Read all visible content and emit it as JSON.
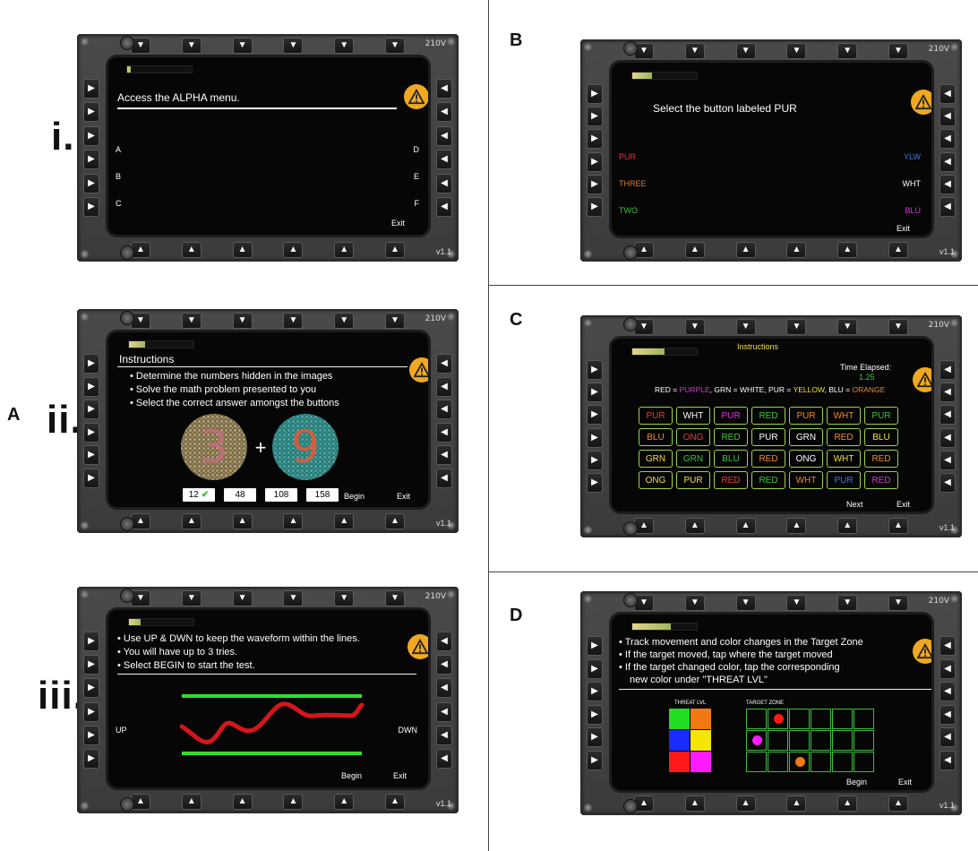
{
  "labels": {
    "A": "A",
    "B": "B",
    "C": "C",
    "D": "D",
    "i": "i.",
    "ii": "ii.",
    "iii": "iii."
  },
  "common": {
    "brand": "210V",
    "version": "v1.1",
    "exit": "Exit",
    "begin": "Begin",
    "next": "Next"
  },
  "panel_i": {
    "instruction": "Access the ALPHA menu.",
    "left": [
      "A",
      "B",
      "C"
    ],
    "right": [
      "D",
      "E",
      "F"
    ],
    "progress": 0.05
  },
  "panel_ii": {
    "title": "Instructions",
    "bullets": [
      "Determine the numbers hidden in the images",
      "Solve the math problem presented to you",
      "Select the correct answer amongst the buttons"
    ],
    "plus": "+",
    "answers": [
      "12",
      "48",
      "108",
      "158"
    ],
    "left_digit": "3",
    "right_digit": "9",
    "progress": 0.25
  },
  "panel_iii": {
    "bullets": [
      "Use UP & DWN to keep the waveform within the lines.",
      "You will have up to 3 tries.",
      "Select BEGIN to start the test."
    ],
    "up": "UP",
    "dwn": "DWN",
    "progress": 0.18
  },
  "panel_B": {
    "instruction": "Select the button labeled PUR",
    "left": [
      {
        "t": "PUR",
        "c": "#e23a3a"
      },
      {
        "t": "THREE",
        "c": "#e07a2a"
      },
      {
        "t": "TWO",
        "c": "#3bc43b"
      }
    ],
    "right": [
      {
        "t": "YLW",
        "c": "#3a7ae2"
      },
      {
        "t": "WHT",
        "c": "#ffffff"
      },
      {
        "t": "BLU",
        "c": "#d23ad2"
      }
    ],
    "progress": 0.3
  },
  "panel_C": {
    "title": "Instructions",
    "time_label": "Time Elapsed:",
    "time_value": "1.25",
    "legend": [
      {
        "t": "RED = ",
        "c": "#ffffff"
      },
      {
        "t": "PURPLE",
        "c": "#d23ad2"
      },
      {
        "t": ", GRN = WHITE, PUR = ",
        "c": "#ffffff"
      },
      {
        "t": "YELLOW",
        "c": "#f0e040"
      },
      {
        "t": ", BLU = ",
        "c": "#ffffff"
      },
      {
        "t": "ORANGE",
        "c": "#f08a2a"
      }
    ],
    "grid": [
      [
        {
          "t": "PUR",
          "c": "#e23a3a"
        },
        {
          "t": "WHT",
          "c": "#ffffff"
        },
        {
          "t": "PUR",
          "c": "#d23ad2"
        },
        {
          "t": "RED",
          "c": "#3bc43b"
        },
        {
          "t": "PUR",
          "c": "#f08a2a"
        },
        {
          "t": "WHT",
          "c": "#f08a2a"
        },
        {
          "t": "PUR",
          "c": "#3bc43b"
        }
      ],
      [
        {
          "t": "BLU",
          "c": "#f08a2a"
        },
        {
          "t": "ONG",
          "c": "#e23a3a"
        },
        {
          "t": "RED",
          "c": "#3bc43b"
        },
        {
          "t": "PUR",
          "c": "#ffffff"
        },
        {
          "t": "GRN",
          "c": "#ffffff"
        },
        {
          "t": "RED",
          "c": "#f08a2a"
        },
        {
          "t": "BLU",
          "c": "#f0e040"
        }
      ],
      [
        {
          "t": "GRN",
          "c": "#f0e040"
        },
        {
          "t": "GRN",
          "c": "#3bc43b"
        },
        {
          "t": "BLU",
          "c": "#3bc43b"
        },
        {
          "t": "RED",
          "c": "#f08a2a"
        },
        {
          "t": "ONG",
          "c": "#ffffff"
        },
        {
          "t": "WHT",
          "c": "#f0e040"
        },
        {
          "t": "RED",
          "c": "#f08a2a"
        }
      ],
      [
        {
          "t": "ONG",
          "c": "#f0e040"
        },
        {
          "t": "PUR",
          "c": "#f0e040"
        },
        {
          "t": "RED",
          "c": "#e23a3a"
        },
        {
          "t": "RED",
          "c": "#3bc43b"
        },
        {
          "t": "WHT",
          "c": "#f08a2a"
        },
        {
          "t": "PUR",
          "c": "#3a7ae2"
        },
        {
          "t": "RED",
          "c": "#d23ad2"
        }
      ]
    ],
    "progress": 0.5
  },
  "panel_D": {
    "bullets": [
      "Track movement and color changes in the Target Zone",
      "If the target moved, tap where the target moved",
      "If the target changed color, tap the corresponding"
    ],
    "bullet_cont": "new color under \"THREAT LVL\"",
    "threat_label": "THREAT LVL",
    "target_label": "TARGET ZONE",
    "threat_colors": [
      "#22dd22",
      "#f07a10",
      "#1a2bff",
      "#f5e600",
      "#ff1a1a",
      "#ff1aff"
    ],
    "progress": 0.6
  }
}
